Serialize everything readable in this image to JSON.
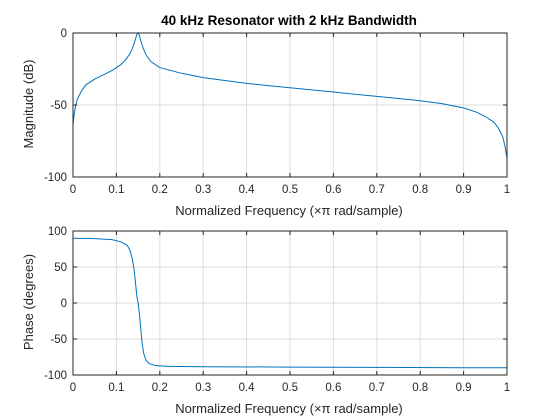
{
  "chart_data": [
    {
      "type": "line",
      "title": "40 kHz Resonator with 2 kHz Bandwidth",
      "xlabel": "Normalized Frequency  (×π rad/sample)",
      "ylabel": "Magnitude (dB)",
      "xlim": [
        0,
        1
      ],
      "ylim": [
        -100,
        0
      ],
      "xticks": [
        "0",
        "0.1",
        "0.2",
        "0.3",
        "0.4",
        "0.5",
        "0.6",
        "0.7",
        "0.8",
        "0.9",
        "1"
      ],
      "yticks": [
        "-100",
        "-50",
        "0"
      ],
      "grid": true,
      "line_color": "#0072BD",
      "series": [
        {
          "x": [
            0,
            0.002,
            0.005,
            0.01,
            0.02,
            0.03,
            0.05,
            0.07,
            0.09,
            0.11,
            0.12,
            0.13,
            0.135,
            0.14,
            0.143,
            0.146,
            0.148,
            0.15,
            0.152,
            0.154,
            0.157,
            0.16,
            0.165,
            0.17,
            0.18,
            0.2,
            0.25,
            0.3,
            0.35,
            0.4,
            0.45,
            0.5,
            0.55,
            0.6,
            0.65,
            0.7,
            0.75,
            0.8,
            0.85,
            0.9,
            0.93,
            0.95,
            0.97,
            0.98,
            0.99,
            0.995,
            1.0
          ],
          "values": [
            -64,
            -58,
            -52,
            -46,
            -40,
            -36,
            -32,
            -29,
            -26,
            -22,
            -19,
            -15,
            -12,
            -8,
            -5,
            -2,
            -0.5,
            0,
            -1,
            -3,
            -6,
            -9,
            -13,
            -16,
            -20,
            -24,
            -28,
            -31,
            -33,
            -35,
            -36.5,
            -38,
            -39.5,
            -41,
            -42.5,
            -44,
            -45.5,
            -47,
            -49,
            -52,
            -55,
            -58,
            -62,
            -66,
            -72,
            -78,
            -87
          ]
        }
      ]
    },
    {
      "type": "line",
      "title": "",
      "xlabel": "Normalized Frequency  (×π rad/sample)",
      "ylabel": "Phase (degrees)",
      "xlim": [
        0,
        1
      ],
      "ylim": [
        -100,
        100
      ],
      "xticks": [
        "0",
        "0.1",
        "0.2",
        "0.3",
        "0.4",
        "0.5",
        "0.6",
        "0.7",
        "0.8",
        "0.9",
        "1"
      ],
      "yticks": [
        "-100",
        "-50",
        "0",
        "50",
        "100"
      ],
      "grid": true,
      "line_color": "#0072BD",
      "series": [
        {
          "x": [
            0,
            0.05,
            0.09,
            0.11,
            0.125,
            0.132,
            0.137,
            0.141,
            0.144,
            0.147,
            0.15,
            0.153,
            0.156,
            0.159,
            0.163,
            0.168,
            0.175,
            0.19,
            0.22,
            0.3,
            0.5,
            0.7,
            0.9,
            1.0
          ],
          "values": [
            90,
            89.5,
            88,
            85,
            80,
            72,
            60,
            45,
            28,
            10,
            0,
            -15,
            -35,
            -55,
            -70,
            -79,
            -84,
            -87,
            -88,
            -88.5,
            -89,
            -89.5,
            -90,
            -90
          ]
        }
      ]
    }
  ]
}
